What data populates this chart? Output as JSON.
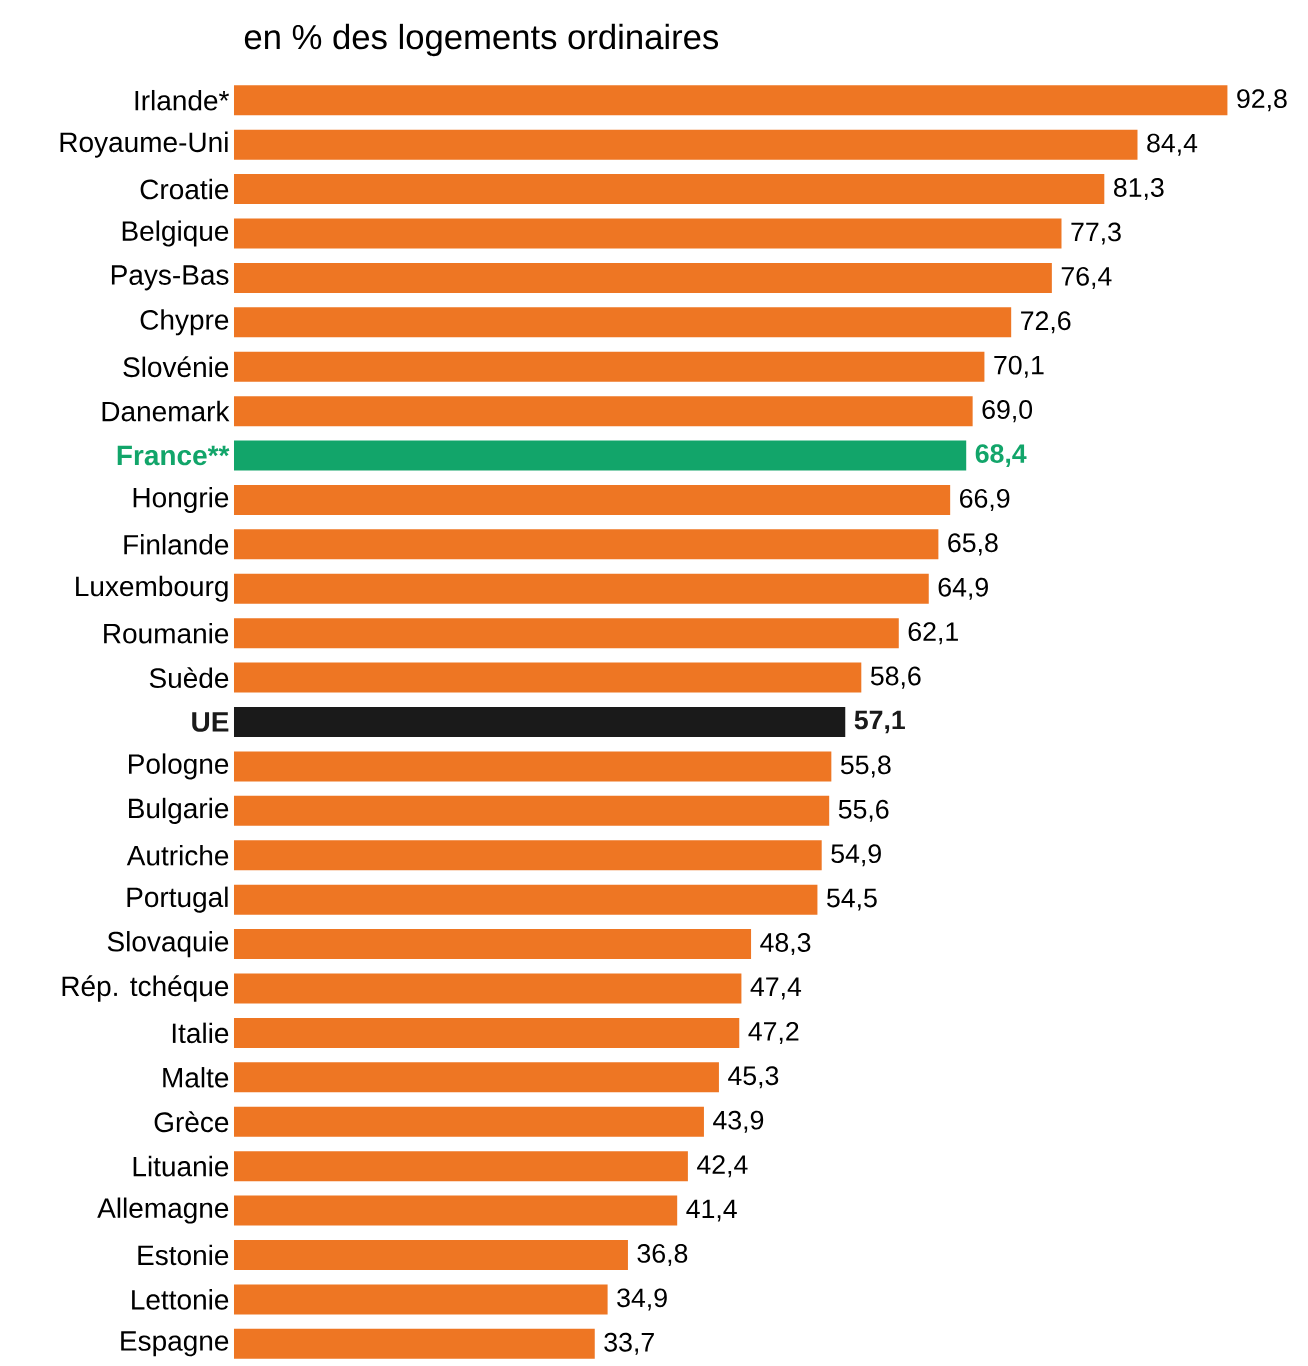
{
  "chart_data": {
    "type": "bar",
    "orientation": "horizontal",
    "title": "en % des logements ordinaires",
    "categories": [
      "Irlande*",
      "Royaume-Uni",
      "Croatie",
      "Belgique",
      "Pays-Bas",
      "Chypre",
      "Slovénie",
      "Danemark",
      "France**",
      "Hongrie",
      "Finlande",
      "Luxembourg",
      "Roumanie",
      "Suède",
      "UE",
      "Pologne",
      "Bulgarie",
      "Autriche",
      "Portugal",
      "Slovaquie",
      "Rép. tchéque",
      "Italie",
      "Malte",
      "Grèce",
      "Lituanie",
      "Allemagne",
      "Estonie",
      "Lettonie",
      "Espagne"
    ],
    "values": [
      92.8,
      84.4,
      81.3,
      77.3,
      76.4,
      72.6,
      70.1,
      69.0,
      68.4,
      66.9,
      65.8,
      64.9,
      62.1,
      58.6,
      57.1,
      55.8,
      55.6,
      54.9,
      54.5,
      48.3,
      47.4,
      47.2,
      45.3,
      43.9,
      42.4,
      41.4,
      36.8,
      34.9,
      33.7
    ],
    "value_labels": [
      "92,8",
      "84,4",
      "81,3",
      "77,3",
      "76,4",
      "72,6",
      "70,1",
      "69,0",
      "68,4",
      "66,9",
      "65,8",
      "64,9",
      "62,1",
      "58,6",
      "57,1",
      "55,8",
      "55,6",
      "54,9",
      "54,5",
      "48,3",
      "47,4",
      "47,2",
      "45,3",
      "43,9",
      "42,4",
      "41,4",
      "36,8",
      "34,9",
      "33,7"
    ],
    "colors": [
      "#ee7623",
      "#ee7623",
      "#ee7623",
      "#ee7623",
      "#ee7623",
      "#ee7623",
      "#ee7623",
      "#ee7623",
      "#12a56a",
      "#ee7623",
      "#ee7623",
      "#ee7623",
      "#ee7623",
      "#ee7623",
      "#1a1a1a",
      "#ee7623",
      "#ee7623",
      "#ee7623",
      "#ee7623",
      "#ee7623",
      "#ee7623",
      "#ee7623",
      "#ee7623",
      "#ee7623",
      "#ee7623",
      "#ee7623",
      "#ee7623",
      "#ee7623",
      "#ee7623"
    ]
  }
}
